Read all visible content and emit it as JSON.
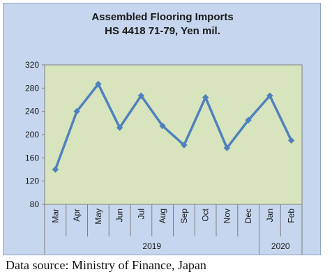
{
  "chart_data": {
    "type": "line",
    "title_line1": "Assembled Flooring Imports",
    "title_line2": "HS 4418 71-79, Yen mil.",
    "categories": [
      "Mar",
      "Apr",
      "May",
      "Jun",
      "Jul",
      "Aug",
      "Sep",
      "Oct",
      "Nov",
      "Dec",
      "Jan",
      "Feb"
    ],
    "series": [
      {
        "values": [
          140,
          240,
          287,
          212,
          267,
          215,
          182,
          264,
          177,
          225,
          267,
          190
        ]
      }
    ],
    "year_groups": [
      {
        "label": "2019",
        "start": 0,
        "end": 9
      },
      {
        "label": "2020",
        "start": 10,
        "end": 11
      }
    ],
    "ylim": [
      80,
      320
    ],
    "yticks": [
      80,
      120,
      160,
      200,
      240,
      280,
      320
    ],
    "grid": false,
    "legend": "none",
    "colors": {
      "frame_bg": "#c5d6ee",
      "plot_bg": "#d7e4bd",
      "line": "#4f81bd",
      "marker": "#4f81bd"
    }
  },
  "source_note": "Data source: Ministry of Finance, Japan"
}
